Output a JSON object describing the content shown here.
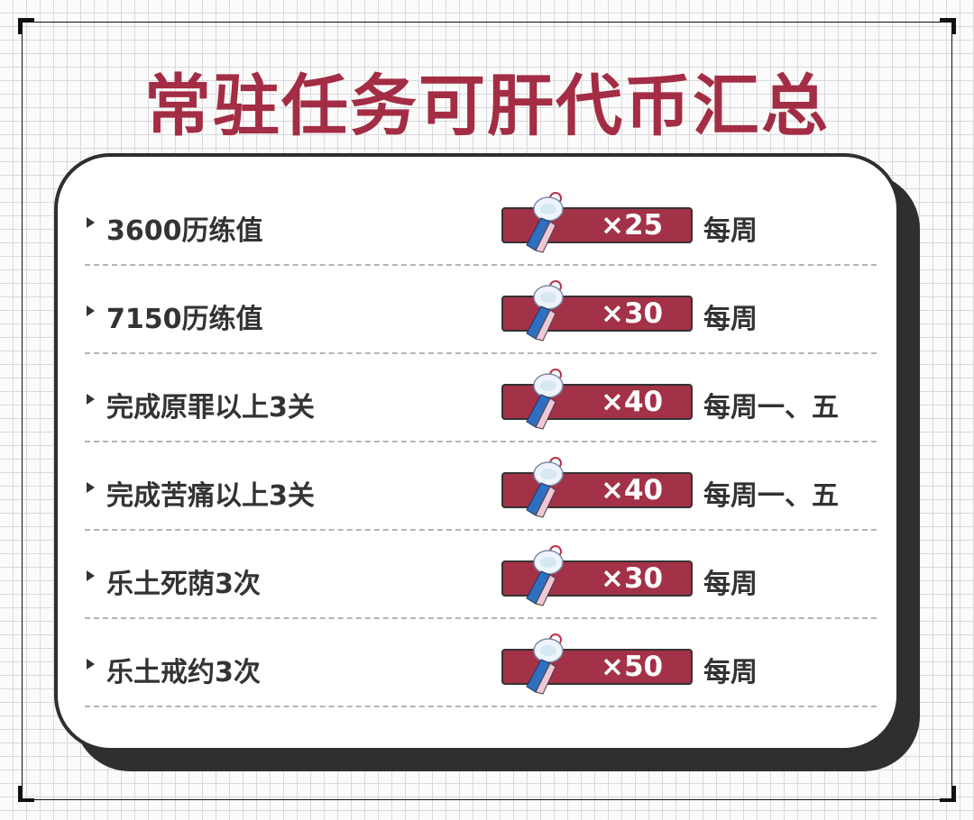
{
  "title": "常驻任务可肝代币汇总",
  "colors": {
    "accent": "#a32d44",
    "text": "#333333"
  },
  "token_icon": "wind-chime-token-icon",
  "rows": [
    {
      "task": "3600历练值",
      "quantity": "×25",
      "frequency": "每周"
    },
    {
      "task": "7150历练值",
      "quantity": "×30",
      "frequency": "每周"
    },
    {
      "task": "完成原罪以上3关",
      "quantity": "×40",
      "frequency": "每周一、五"
    },
    {
      "task": "完成苦痛以上3关",
      "quantity": "×40",
      "frequency": "每周一、五"
    },
    {
      "task": "乐土死荫3次",
      "quantity": "×30",
      "frequency": "每周"
    },
    {
      "task": "乐土戒约3次",
      "quantity": "×50",
      "frequency": "每周"
    }
  ]
}
